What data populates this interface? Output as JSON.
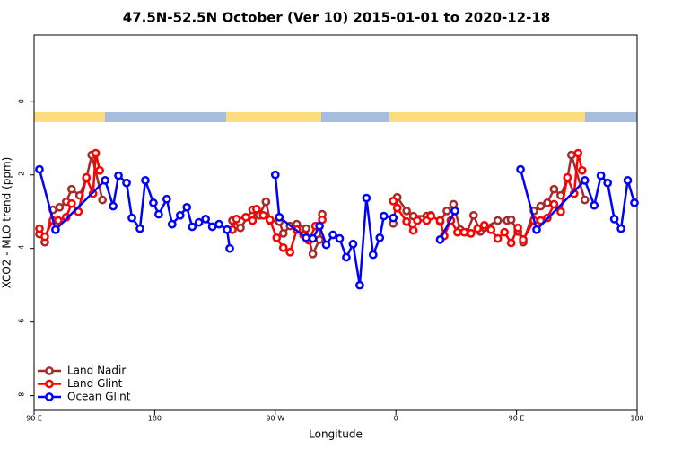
{
  "chart_data": {
    "type": "line",
    "title": "47.5N-52.5N October (Ver 10)   2015-01-01 to 2020-12-18",
    "x_label": "Longitude",
    "y_label": "XCO2 - MLO trend (ppm)",
    "xlim": [
      90,
      540
    ],
    "ylim": [
      -8.4,
      1.8
    ],
    "xticks": [
      {
        "value": 90,
        "label": "90 E"
      },
      180,
      {
        "value": 270,
        "label": "90 W"
      },
      {
        "value": 360,
        "label": "0"
      },
      {
        "value": 450,
        "label": "90 E"
      },
      {
        "value": 540,
        "label": "180"
      }
    ],
    "yticks": [
      0,
      -2,
      -4,
      -6,
      -8
    ],
    "legend": "bottomleft",
    "series": [
      {
        "name": "Land Nadir",
        "color": "#a52a2a",
        "x": [
          94,
          98,
          104,
          109,
          114,
          118,
          124,
          129,
          133,
          141,
          null,
          238,
          244,
          253,
          258,
          263,
          266,
          273,
          276,
          281,
          286,
          293,
          298,
          303,
          305,
          null,
          358,
          361,
          368,
          373,
          383,
          386,
          393,
          398,
          403,
          408,
          413,
          418,
          423,
          426,
          436,
          443,
          446,
          451,
          455,
          463,
          468,
          473,
          478,
          483,
          488,
          491,
          501
        ],
        "values": [
          -3.61,
          -3.83,
          -2.95,
          -2.88,
          -2.73,
          -2.39,
          -2.56,
          -2.1,
          -1.46,
          -2.68,
          null,
          -3.24,
          -3.44,
          -2.95,
          -3.1,
          -2.73,
          -3.24,
          -3.27,
          -3.59,
          -3.39,
          -3.34,
          -3.46,
          -4.15,
          -3.76,
          -3.07,
          null,
          -3.32,
          -2.61,
          -2.98,
          -3.12,
          -3.12,
          -3.1,
          -3.27,
          -2.98,
          -2.8,
          -3.49,
          -3.56,
          -3.1,
          -3.54,
          -3.44,
          -3.24,
          -3.24,
          -3.22,
          -3.54,
          -3.83,
          -2.98,
          -2.85,
          -2.76,
          -2.39,
          -2.56,
          -2.1,
          -1.46,
          -2.68
        ]
      },
      {
        "name": "Land Glint",
        "color": "#ff0000",
        "x": [
          94,
          98,
          104,
          108,
          114,
          118,
          123,
          129,
          134,
          136,
          139,
          null,
          238,
          241,
          248,
          253,
          256,
          261,
          266,
          271,
          276,
          281,
          286,
          291,
          295,
          300,
          305,
          null,
          358,
          361,
          368,
          373,
          376,
          383,
          386,
          393,
          396,
          401,
          406,
          411,
          416,
          421,
          426,
          431,
          436,
          441,
          446,
          451,
          455,
          463,
          468,
          473,
          478,
          483,
          488,
          493,
          496,
          499
        ],
        "values": [
          -3.46,
          -3.68,
          -3.24,
          -3.24,
          -3.15,
          -2.78,
          -3.0,
          -2.07,
          -2.51,
          -1.41,
          -1.88,
          null,
          -3.49,
          -3.2,
          -3.15,
          -3.24,
          -2.93,
          -3.1,
          -3.22,
          -3.71,
          -3.98,
          -4.1,
          -3.49,
          -3.63,
          -3.78,
          -3.39,
          -3.22,
          null,
          -2.71,
          -2.9,
          -3.27,
          -3.51,
          -3.24,
          -3.24,
          -3.12,
          -3.24,
          -3.66,
          -3.24,
          -3.56,
          -3.56,
          -3.59,
          -3.46,
          -3.37,
          -3.49,
          -3.73,
          -3.56,
          -3.85,
          -3.44,
          -3.76,
          -3.24,
          -3.24,
          -3.17,
          -2.8,
          -3.0,
          -2.07,
          -2.51,
          -1.41,
          -1.88
        ]
      },
      {
        "name": "Ocean Glint",
        "color": "#0000ff",
        "x": [
          94,
          106,
          143,
          149,
          153,
          159,
          163,
          169,
          173,
          179,
          183,
          189,
          193,
          199,
          204,
          208,
          213,
          218,
          223,
          228,
          234,
          236,
          null,
          270,
          273,
          293,
          298,
          303,
          308,
          313,
          318,
          323,
          328,
          333,
          338,
          343,
          348,
          351,
          358,
          null,
          393,
          404,
          null,
          453,
          465,
          501,
          508,
          513,
          518,
          523,
          528,
          533,
          538
        ],
        "values": [
          -1.85,
          -3.49,
          -2.15,
          -2.85,
          -2.02,
          -2.22,
          -3.17,
          -3.46,
          -2.15,
          -2.76,
          -3.07,
          -2.66,
          -3.34,
          -3.1,
          -2.88,
          -3.41,
          -3.29,
          -3.2,
          -3.41,
          -3.34,
          -3.49,
          -4.0,
          null,
          -2.0,
          -3.15,
          -3.71,
          -3.73,
          -3.39,
          -3.9,
          -3.63,
          -3.73,
          -4.24,
          -3.88,
          -5.0,
          -2.63,
          -4.17,
          -3.71,
          -3.12,
          -3.17,
          null,
          -3.76,
          -2.98,
          null,
          -1.85,
          -3.49,
          -2.15,
          -2.83,
          -2.02,
          -2.22,
          -3.2,
          -3.46,
          -2.15,
          -2.76
        ]
      }
    ]
  }
}
